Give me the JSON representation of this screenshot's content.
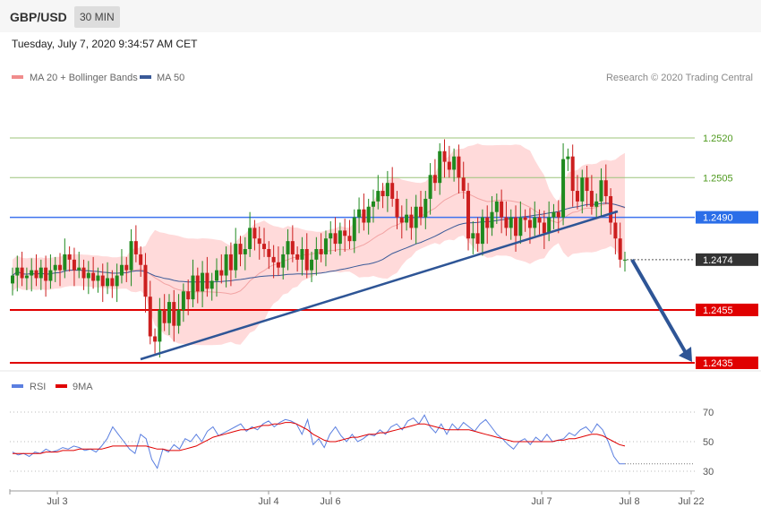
{
  "header": {
    "symbol": "GBP/USD",
    "timeframe": "30 MIN",
    "timestamp": "Tuesday, July 7, 2020 9:34:57 AM CET"
  },
  "legend": {
    "ma20": "MA 20 + Bollinger Bands",
    "ma50": "MA 50",
    "credit": "Research © 2020 Trading Central",
    "rsi": "RSI",
    "rsi_ma": "9MA"
  },
  "colors": {
    "bull": "#1f8a1f",
    "bear": "#cc1f1f",
    "ma50": "#3a5a98",
    "band": "#ffdada",
    "resistance": "#9cc47a",
    "pivot": "#3f73ee",
    "support": "#e00000",
    "trend": "#2e5596"
  },
  "chart_data": [
    {
      "type": "candlestick",
      "title": "GBP/USD 30 MIN",
      "xlabels": [
        "Jul 3",
        "Jul 4",
        "Jul 6",
        "Jul 7",
        "Jul 8",
        "Jul 22"
      ],
      "ylim": [
        1.2425,
        1.2535
      ],
      "levels": [
        {
          "value": 1.252,
          "label": "1.2520",
          "kind": "resistance"
        },
        {
          "value": 1.2505,
          "label": "1.2505",
          "kind": "resistance"
        },
        {
          "value": 1.249,
          "label": "1.2490",
          "kind": "pivot"
        },
        {
          "value": 1.2474,
          "label": "1.2474",
          "kind": "last"
        },
        {
          "value": 1.2455,
          "label": "1.2455",
          "kind": "support"
        },
        {
          "value": 1.2435,
          "label": "1.2435",
          "kind": "support"
        }
      ],
      "close": [
        1.2468,
        1.2471,
        1.2467,
        1.2468,
        1.247,
        1.2467,
        1.2471,
        1.2466,
        1.247,
        1.2472,
        1.247,
        1.2476,
        1.2474,
        1.247,
        1.2471,
        1.2467,
        1.2469,
        1.2466,
        1.2468,
        1.2464,
        1.2467,
        1.2464,
        1.2468,
        1.2472,
        1.247,
        1.2481,
        1.2476,
        1.2472,
        1.246,
        1.2445,
        1.2443,
        1.2455,
        1.245,
        1.2458,
        1.2449,
        1.2455,
        1.2462,
        1.2459,
        1.2468,
        1.2462,
        1.2469,
        1.2463,
        1.2466,
        1.247,
        1.2468,
        1.2476,
        1.247,
        1.248,
        1.2476,
        1.2478,
        1.2486,
        1.2482,
        1.248,
        1.2478,
        1.2475,
        1.2473,
        1.2471,
        1.2476,
        1.2481,
        1.2476,
        1.2474,
        1.2478,
        1.247,
        1.2474,
        1.2478,
        1.2476,
        1.2482,
        1.2484,
        1.248,
        1.2485,
        1.2483,
        1.2481,
        1.249,
        1.2493,
        1.2488,
        1.2494,
        1.2496,
        1.25,
        1.2498,
        1.2503,
        1.2497,
        1.249,
        1.2488,
        1.2491,
        1.2486,
        1.2494,
        1.249,
        1.2497,
        1.2506,
        1.2503,
        1.2515,
        1.2511,
        1.2508,
        1.2513,
        1.2505,
        1.25,
        1.2482,
        1.2484,
        1.248,
        1.249,
        1.2486,
        1.2492,
        1.2496,
        1.249,
        1.2486,
        1.249,
        1.2483,
        1.249,
        1.2489,
        1.2486,
        1.249,
        1.2488,
        1.2484,
        1.249,
        1.2492,
        1.249,
        1.2512,
        1.2513,
        1.25,
        1.2496,
        1.2505,
        1.25,
        1.2494,
        1.2496,
        1.2504,
        1.2498,
        1.2488,
        1.2482,
        1.2474,
        1.2474
      ],
      "rsi_ticks": [
        70,
        50,
        30
      ],
      "rsi": [
        43,
        41,
        42,
        40,
        43,
        42,
        45,
        43,
        44,
        46,
        45,
        47,
        46,
        44,
        45,
        43,
        47,
        52,
        60,
        55,
        50,
        45,
        42,
        55,
        52,
        38,
        32,
        45,
        43,
        48,
        45,
        52,
        50,
        55,
        50,
        57,
        60,
        54,
        56,
        58,
        60,
        62,
        57,
        60,
        58,
        62,
        64,
        60,
        63,
        65,
        64,
        62,
        55,
        65,
        48,
        52,
        46,
        55,
        60,
        54,
        50,
        55,
        50,
        52,
        55,
        54,
        58,
        55,
        60,
        62,
        58,
        64,
        66,
        62,
        68,
        60,
        56,
        62,
        55,
        62,
        58,
        63,
        60,
        57,
        62,
        65,
        60,
        55,
        52,
        48,
        45,
        50,
        52,
        48,
        53,
        50,
        55,
        50,
        51,
        52,
        56,
        54,
        58,
        60,
        56,
        62,
        58,
        50,
        40,
        35,
        35
      ],
      "rsi_ma": [
        42,
        42,
        42,
        42,
        42,
        42,
        43,
        43,
        43,
        44,
        44,
        44,
        45,
        45,
        45,
        45,
        45,
        46,
        47,
        47,
        47,
        47,
        47,
        47,
        47,
        46,
        45,
        45,
        44,
        44,
        44,
        45,
        46,
        47,
        49,
        51,
        53,
        54,
        55,
        56,
        57,
        58,
        58,
        59,
        60,
        61,
        61,
        62,
        62,
        63,
        63,
        62,
        60,
        58,
        55,
        53,
        51,
        50,
        50,
        51,
        52,
        53,
        53,
        54,
        55,
        55,
        56,
        56,
        57,
        58,
        59,
        60,
        61,
        62,
        62,
        61,
        60,
        59,
        58,
        58,
        58,
        58,
        58,
        57,
        56,
        55,
        54,
        53,
        52,
        51,
        50,
        50,
        50,
        50,
        50,
        50,
        50,
        50,
        51,
        51,
        52,
        52,
        53,
        54,
        55,
        55,
        54,
        52,
        50,
        48,
        47
      ]
    }
  ]
}
